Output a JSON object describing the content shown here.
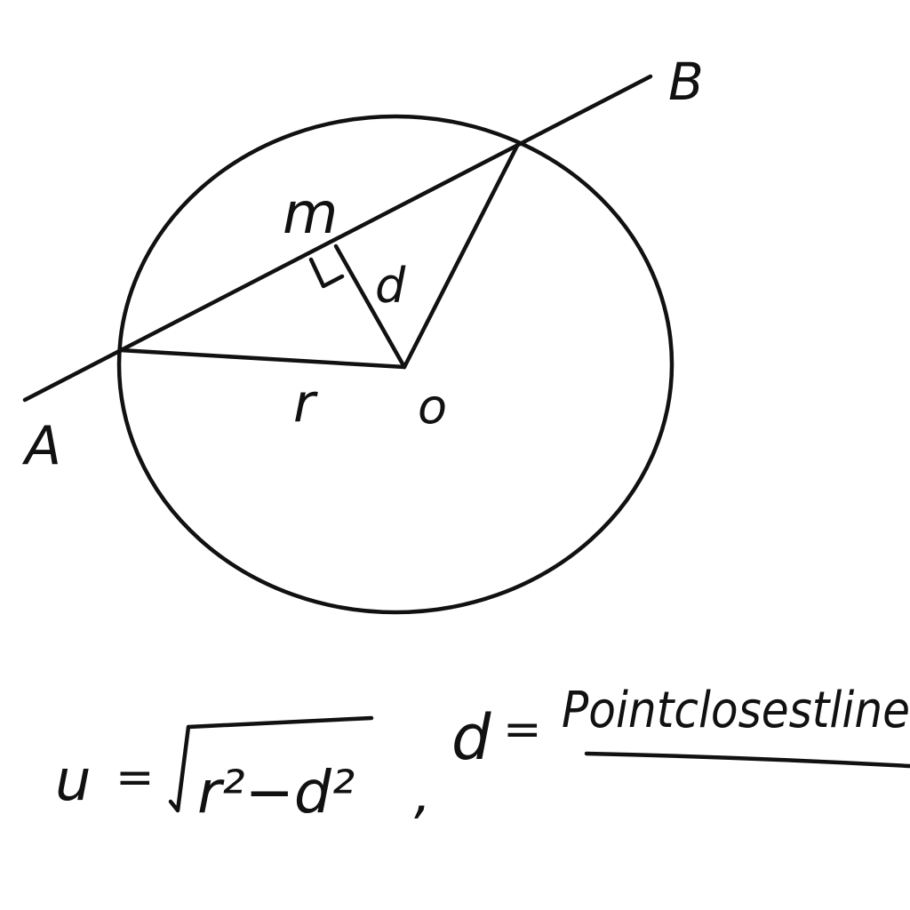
{
  "diagram": {
    "labels": {
      "point_a": "A",
      "point_b": "B",
      "center": "o",
      "midpoint": "m",
      "distance": "d",
      "radius": "r"
    },
    "formula": {
      "lhs": "u",
      "eq": "=",
      "radicand": "r²−d²",
      "comma": ",",
      "d_def": "d",
      "d_eq": "=",
      "d_text": "Pointclosestline"
    }
  }
}
